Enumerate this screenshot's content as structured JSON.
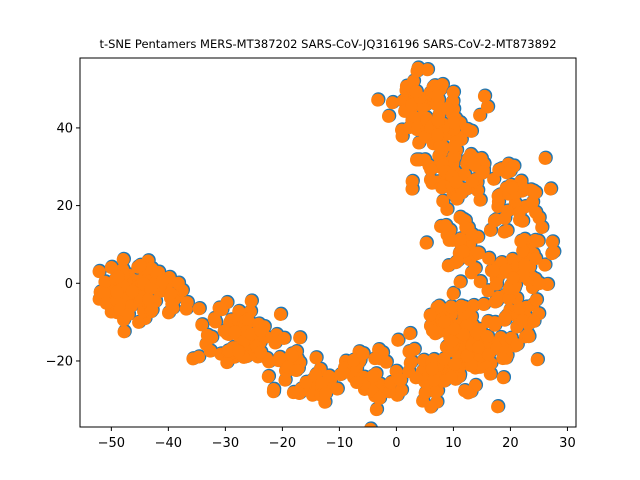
{
  "chart_data": {
    "type": "scatter",
    "title": "t-SNE Pentamers MERS-MT387202 SARS-CoV-JQ316196 SARS-CoV-2-MT873892",
    "xlabel": "",
    "ylabel": "",
    "xlim": [
      -55.5,
      31.5
    ],
    "ylim": [
      -37,
      58
    ],
    "xticks": [
      -50,
      -40,
      -30,
      -20,
      -10,
      0,
      10,
      20,
      30
    ],
    "yticks": [
      -20,
      0,
      20,
      40
    ],
    "xtick_labels": [
      "−50",
      "−40",
      "−30",
      "−20",
      "−10",
      "0",
      "10",
      "20",
      "30"
    ],
    "ytick_labels": [
      "−20",
      "0",
      "20",
      "40"
    ],
    "grid": false,
    "series": [
      {
        "color": "#1f77b4",
        "clusters": [
          {
            "cx": -47,
            "cy": -2,
            "sx": 2.5,
            "sy": 4.0,
            "n": 60
          },
          {
            "cx": -42,
            "cy": -3,
            "sx": 2.5,
            "sy": 3.5,
            "n": 40
          },
          {
            "cx": -30,
            "cy": -12,
            "sx": 3.0,
            "sy": 5.0,
            "n": 45
          },
          {
            "cx": -24,
            "cy": -14,
            "sx": 2.5,
            "sy": 4.0,
            "n": 30
          },
          {
            "cx": -19,
            "cy": -21,
            "sx": 2.5,
            "sy": 3.0,
            "n": 25
          },
          {
            "cx": -14,
            "cy": -26,
            "sx": 2.0,
            "sy": 3.0,
            "n": 20
          },
          {
            "cx": -7,
            "cy": -22,
            "sx": 2.5,
            "sy": 2.5,
            "n": 15
          },
          {
            "cx": -2,
            "cy": -24,
            "sx": 2.5,
            "sy": 4.0,
            "n": 30
          },
          {
            "cx": 7,
            "cy": -24,
            "sx": 2.5,
            "sy": 3.0,
            "n": 30
          },
          {
            "cx": 11,
            "cy": -19,
            "sx": 3.0,
            "sy": 5.0,
            "n": 50
          },
          {
            "cx": 16,
            "cy": -16,
            "sx": 3.0,
            "sy": 5.0,
            "n": 45
          },
          {
            "cx": 21,
            "cy": -12,
            "sx": 2.5,
            "sy": 5.0,
            "n": 30
          },
          {
            "cx": 9,
            "cy": -10,
            "sx": 3.0,
            "sy": 3.0,
            "n": 30
          },
          {
            "cx": 20,
            "cy": 2,
            "sx": 2.5,
            "sy": 4.0,
            "n": 30
          },
          {
            "cx": 24,
            "cy": 6,
            "sx": 2.5,
            "sy": 3.5,
            "n": 30
          },
          {
            "cx": 11,
            "cy": 10,
            "sx": 2.5,
            "sy": 4.0,
            "n": 35
          },
          {
            "cx": 20,
            "cy": 22,
            "sx": 3.0,
            "sy": 5.0,
            "n": 40
          },
          {
            "cx": 9,
            "cy": 26,
            "sx": 3.0,
            "sy": 5.0,
            "n": 45
          },
          {
            "cx": 14,
            "cy": 30,
            "sx": 2.5,
            "sy": 2.5,
            "n": 20
          },
          {
            "cx": 4,
            "cy": 46,
            "sx": 2.5,
            "sy": 5.0,
            "n": 50
          },
          {
            "cx": 10,
            "cy": 45,
            "sx": 2.5,
            "sy": 4.0,
            "n": 30
          },
          {
            "cx": 7,
            "cy": 38,
            "sx": 3.0,
            "sy": 3.0,
            "n": 30
          }
        ]
      },
      {
        "color": "#ff7f0e",
        "clusters": "same as series 0 (overplotted)"
      }
    ]
  }
}
